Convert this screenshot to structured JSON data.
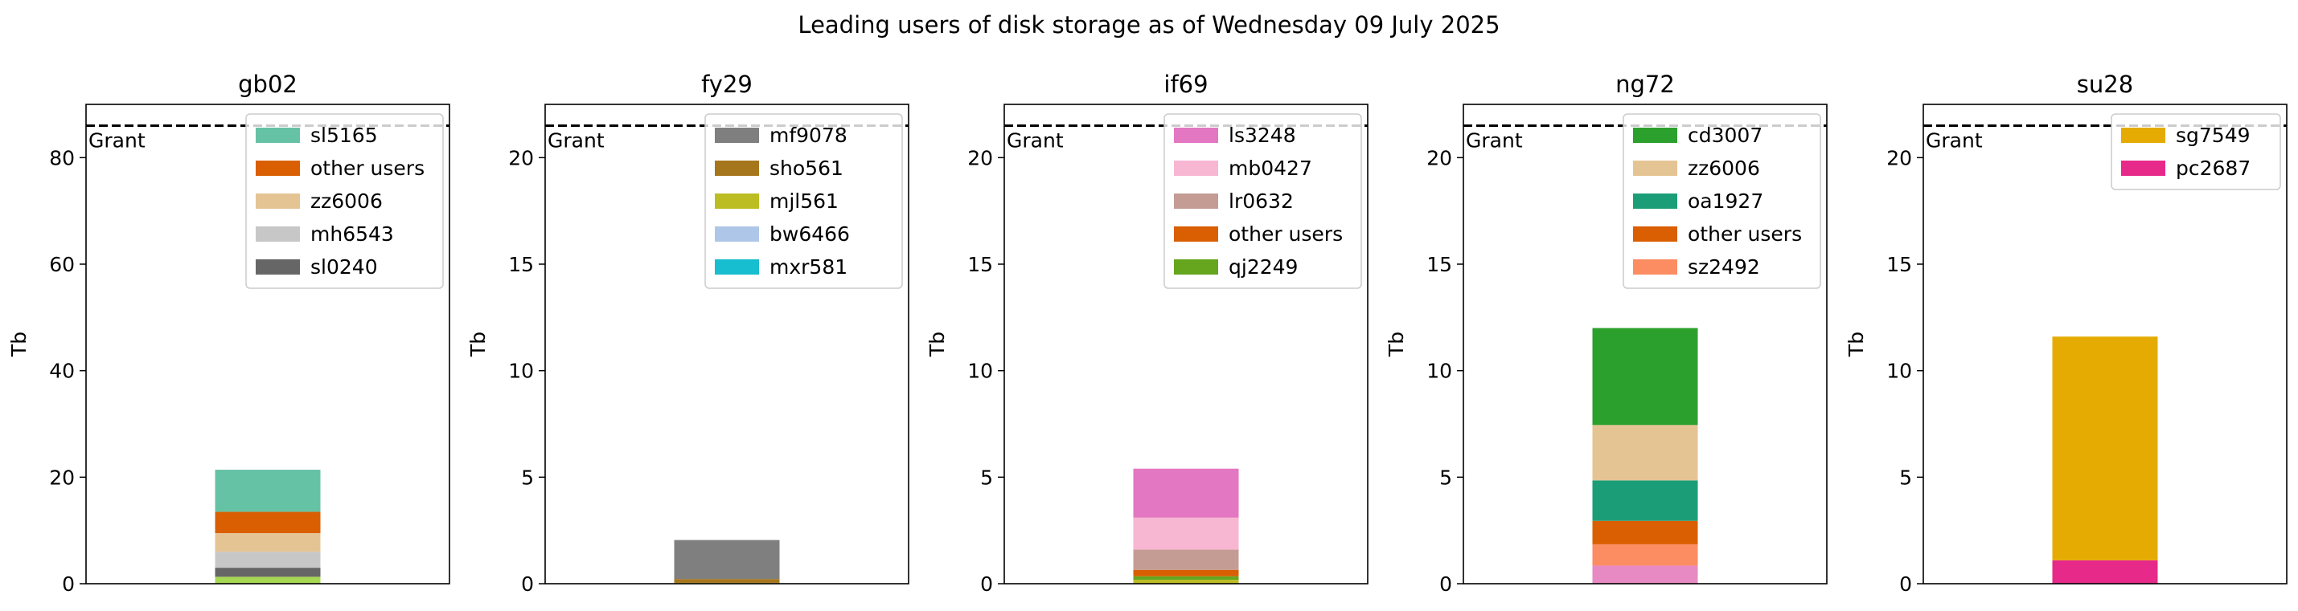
{
  "suptitle": "Leading users of disk storage as of  Wednesday 09 July 2025",
  "chart_data": [
    {
      "type": "bar",
      "stacked": true,
      "title": "gb02",
      "ylabel": "Tb",
      "ylim": [
        0,
        90
      ],
      "yticks": [
        0,
        20,
        40,
        60,
        80
      ],
      "grant": 86,
      "grant_label": "Grant",
      "series": [
        {
          "name": "",
          "value": 1.3,
          "color": "#a6d854"
        },
        {
          "name": "sl0240",
          "value": 1.7,
          "color": "#666666"
        },
        {
          "name": "mh6543",
          "value": 3.0,
          "color": "#c7c7c7"
        },
        {
          "name": "zz6006",
          "value": 3.5,
          "color": "#e5c494"
        },
        {
          "name": "other users",
          "value": 4.0,
          "color": "#d95f02"
        },
        {
          "name": "sl5165",
          "value": 7.9,
          "color": "#66c2a5"
        }
      ],
      "legend": [
        "sl5165",
        "other users",
        "zz6006",
        "mh6543",
        "sl0240"
      ]
    },
    {
      "type": "bar",
      "stacked": true,
      "title": "fy29",
      "ylabel": "Tb",
      "ylim": [
        0,
        22.5
      ],
      "yticks": [
        0,
        5,
        10,
        15,
        20
      ],
      "grant": 21.5,
      "grant_label": "Grant",
      "series": [
        {
          "name": "mxr581",
          "value": 0.01,
          "color": "#17becf"
        },
        {
          "name": "bw6466",
          "value": 0.01,
          "color": "#aec7e8"
        },
        {
          "name": "mjl561",
          "value": 0.02,
          "color": "#bcbd22"
        },
        {
          "name": "sho561",
          "value": 0.18,
          "color": "#a6761d"
        },
        {
          "name": "mf9078",
          "value": 1.83,
          "color": "#7f7f7f"
        }
      ],
      "legend": [
        "mf9078",
        "sho561",
        "mjl561",
        "bw6466",
        "mxr581"
      ]
    },
    {
      "type": "bar",
      "stacked": true,
      "title": "if69",
      "ylabel": "Tb",
      "ylim": [
        0,
        22.5
      ],
      "yticks": [
        0,
        5,
        10,
        15,
        20
      ],
      "grant": 21.5,
      "grant_label": "Grant",
      "series": [
        {
          "name": "",
          "value": 0.18,
          "color": "#bcbd22"
        },
        {
          "name": "qj2249",
          "value": 0.17,
          "color": "#66a61e"
        },
        {
          "name": "other users",
          "value": 0.3,
          "color": "#d95f02"
        },
        {
          "name": "lr0632",
          "value": 0.95,
          "color": "#c49c94"
        },
        {
          "name": "mb0427",
          "value": 1.5,
          "color": "#f7b6d2"
        },
        {
          "name": "ls3248",
          "value": 2.3,
          "color": "#e377c2"
        }
      ],
      "legend": [
        "ls3248",
        "mb0427",
        "lr0632",
        "other users",
        "qj2249"
      ]
    },
    {
      "type": "bar",
      "stacked": true,
      "title": "ng72",
      "ylabel": "Tb",
      "ylim": [
        0,
        22.5
      ],
      "yticks": [
        0,
        5,
        10,
        15,
        20
      ],
      "grant": 21.5,
      "grant_label": "Grant",
      "series": [
        {
          "name": "",
          "value": 0.85,
          "color": "#e78ac3"
        },
        {
          "name": "sz2492",
          "value": 1.0,
          "color": "#fc8d62"
        },
        {
          "name": "other users",
          "value": 1.1,
          "color": "#d95f02"
        },
        {
          "name": "oa1927",
          "value": 1.9,
          "color": "#1b9e77"
        },
        {
          "name": "zz6006",
          "value": 2.6,
          "color": "#e5c494"
        },
        {
          "name": "cd3007",
          "value": 4.55,
          "color": "#2ca02c"
        }
      ],
      "legend": [
        "cd3007",
        "zz6006",
        "oa1927",
        "other users",
        "sz2492"
      ]
    },
    {
      "type": "bar",
      "stacked": true,
      "title": "su28",
      "ylabel": "Tb",
      "ylim": [
        0,
        22.5
      ],
      "yticks": [
        0,
        5,
        10,
        15,
        20
      ],
      "grant": 21.5,
      "grant_label": "Grant",
      "series": [
        {
          "name": "pc2687",
          "value": 1.1,
          "color": "#e7298a"
        },
        {
          "name": "sg7549",
          "value": 10.5,
          "color": "#e6ab02"
        }
      ],
      "legend": [
        "sg7549",
        "pc2687"
      ]
    }
  ]
}
